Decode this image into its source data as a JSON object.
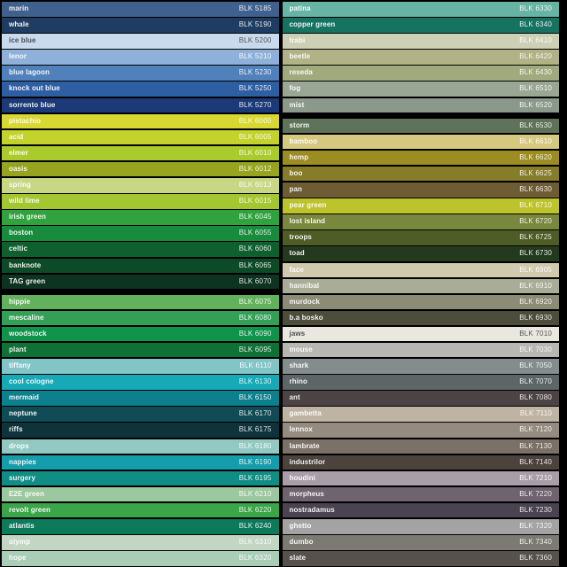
{
  "meta": {
    "chart_kind": "spray-paint color swatch chart",
    "code_prefix": "BLK",
    "background_color": "#000000",
    "text_light": "#ffffff",
    "text_dark": "#2a2f36"
  },
  "columns": [
    {
      "rows": [
        {
          "name": "marin",
          "code": "BLK 5185",
          "bg": "#40618e"
        },
        {
          "name": "whale",
          "code": "BLK 5190",
          "bg": "#1f3d62"
        },
        {
          "name": "ice blue",
          "code": "BLK 5200",
          "bg": "#c9daed",
          "text_style": "dark"
        },
        {
          "name": "lenor",
          "code": "BLK 5210",
          "bg": "#8fb1d9"
        },
        {
          "name": "blue lagoon",
          "code": "BLK 5230",
          "bg": "#5181ba"
        },
        {
          "name": "knock out blue",
          "code": "BLK 5250",
          "bg": "#2e5fa3"
        },
        {
          "name": "sorrento blue",
          "code": "BLK 5270",
          "bg": "#1c3a78"
        },
        {
          "name": "pistachio",
          "code": "BLK 6000",
          "bg": "#d7d832"
        },
        {
          "name": "acid",
          "code": "BLK 6005",
          "bg": "#c3d32c"
        },
        {
          "name": "elmer",
          "code": "BLK 6010",
          "bg": "#aacb2b"
        },
        {
          "name": "oasis",
          "code": "BLK 6012",
          "bg": "#97a41f"
        },
        {
          "name": "spring",
          "code": "BLK 6013",
          "bg": "#c7d785"
        },
        {
          "name": "wild lime",
          "code": "BLK 6015",
          "bg": "#a3c731"
        },
        {
          "name": "irish green",
          "code": "BLK 6045",
          "bg": "#31a33e"
        },
        {
          "name": "boston",
          "code": "BLK 6055",
          "bg": "#188c3c"
        },
        {
          "name": "celtic",
          "code": "BLK 6060",
          "bg": "#10602f"
        },
        {
          "name": "banknote",
          "code": "BLK 6065",
          "bg": "#0d4a28"
        },
        {
          "name": "TAG green",
          "code": "BLK 6070",
          "bg": "#0e3320",
          "separator_after": true
        },
        {
          "name": "hippie",
          "code": "BLK 6075",
          "bg": "#62b25d"
        },
        {
          "name": "mescaline",
          "code": "BLK 6080",
          "bg": "#34a057"
        },
        {
          "name": "woodstock",
          "code": "BLK 6090",
          "bg": "#10934b"
        },
        {
          "name": "plant",
          "code": "BLK 6095",
          "bg": "#0e7136"
        },
        {
          "name": "tiffany",
          "code": "BLK 6110",
          "bg": "#83c5c7"
        },
        {
          "name": "cool cologne",
          "code": "BLK 6130",
          "bg": "#17a9b5"
        },
        {
          "name": "mermaid",
          "code": "BLK 6150",
          "bg": "#0d808d"
        },
        {
          "name": "neptune",
          "code": "BLK 6170",
          "bg": "#114b55"
        },
        {
          "name": "riffs",
          "code": "BLK 6175",
          "bg": "#0e333b"
        },
        {
          "name": "drops",
          "code": "BLK 6180",
          "bg": "#92cac3"
        },
        {
          "name": "nappies",
          "code": "BLK 6190",
          "bg": "#169dab"
        },
        {
          "name": "surgery",
          "code": "BLK 6195",
          "bg": "#108d85"
        },
        {
          "name": "E2E green",
          "code": "BLK 6210",
          "bg": "#9cc89f"
        },
        {
          "name": "revolt green",
          "code": "BLK 6220",
          "bg": "#3ba54a"
        },
        {
          "name": "atlantis",
          "code": "BLK 6240",
          "bg": "#0d7a5a"
        },
        {
          "name": "olymp",
          "code": "BLK 6310",
          "bg": "#c3d6c4"
        },
        {
          "name": "hope",
          "code": "BLK 6320",
          "bg": "#a9cdb6"
        }
      ]
    },
    {
      "rows": [
        {
          "name": "patina",
          "code": "BLK 6330",
          "bg": "#67b3a4"
        },
        {
          "name": "copper green",
          "code": "BLK 6340",
          "bg": "#167362"
        },
        {
          "name": "trabi",
          "code": "BLK 6410",
          "bg": "#ccd1b5"
        },
        {
          "name": "beetle",
          "code": "BLK 6420",
          "bg": "#b1b286"
        },
        {
          "name": "reseda",
          "code": "BLK 6430",
          "bg": "#a1aa7d"
        },
        {
          "name": "fog",
          "code": "BLK 6510",
          "bg": "#9ba795"
        },
        {
          "name": "mist",
          "code": "BLK 6520",
          "bg": "#8b998b",
          "separator_after": true
        },
        {
          "name": "storm",
          "code": "BLK 6530",
          "bg": "#5e7359"
        },
        {
          "name": "bamboo",
          "code": "BLK 6610",
          "bg": "#d5c980"
        },
        {
          "name": "hemp",
          "code": "BLK 6620",
          "bg": "#9b8d22"
        },
        {
          "name": "boo",
          "code": "BLK 6625",
          "bg": "#867c2a"
        },
        {
          "name": "pan",
          "code": "BLK 6630",
          "bg": "#6d5c34"
        },
        {
          "name": "pear green",
          "code": "BLK 6710",
          "bg": "#bdc32b"
        },
        {
          "name": "lost island",
          "code": "BLK 6720",
          "bg": "#78883e"
        },
        {
          "name": "troops",
          "code": "BLK 6725",
          "bg": "#4e5c26"
        },
        {
          "name": "toad",
          "code": "BLK 6730",
          "bg": "#243a1f"
        },
        {
          "name": "face",
          "code": "BLK 6905",
          "bg": "#d0c9ae"
        },
        {
          "name": "hannibal",
          "code": "BLK 6910",
          "bg": "#a9ac96"
        },
        {
          "name": "murdock",
          "code": "BLK 6920",
          "bg": "#8b8b76"
        },
        {
          "name": "b.a bosko",
          "code": "BLK 6930",
          "bg": "#4d4d3b"
        },
        {
          "name": "jaws",
          "code": "BLK 7010",
          "bg": "#e9e7de",
          "text_style": "dark"
        },
        {
          "name": "mouse",
          "code": "BLK 7030",
          "bg": "#b9b7b1"
        },
        {
          "name": "shark",
          "code": "BLK 7050",
          "bg": "#848c8c"
        },
        {
          "name": "rhino",
          "code": "BLK 7070",
          "bg": "#5e6566"
        },
        {
          "name": "ant",
          "code": "BLK 7080",
          "bg": "#4b4344"
        },
        {
          "name": "gambetta",
          "code": "BLK 7110",
          "bg": "#bfb3a3"
        },
        {
          "name": "lennox",
          "code": "BLK 7120",
          "bg": "#958b7f"
        },
        {
          "name": "lambrate",
          "code": "BLK 7130",
          "bg": "#7b7167"
        },
        {
          "name": "industrilor",
          "code": "BLK 7140",
          "bg": "#4d433d"
        },
        {
          "name": "houdini",
          "code": "BLK 7210",
          "bg": "#a99da9"
        },
        {
          "name": "morpheus",
          "code": "BLK 7220",
          "bg": "#6f636f"
        },
        {
          "name": "nostradamus",
          "code": "BLK 7230",
          "bg": "#4b4351"
        },
        {
          "name": "ghetto",
          "code": "BLK 7320",
          "bg": "#a3a3a3"
        },
        {
          "name": "dumbo",
          "code": "BLK 7340",
          "bg": "#7b7b73"
        },
        {
          "name": "slate",
          "code": "BLK 7360",
          "bg": "#56514d"
        }
      ]
    }
  ]
}
